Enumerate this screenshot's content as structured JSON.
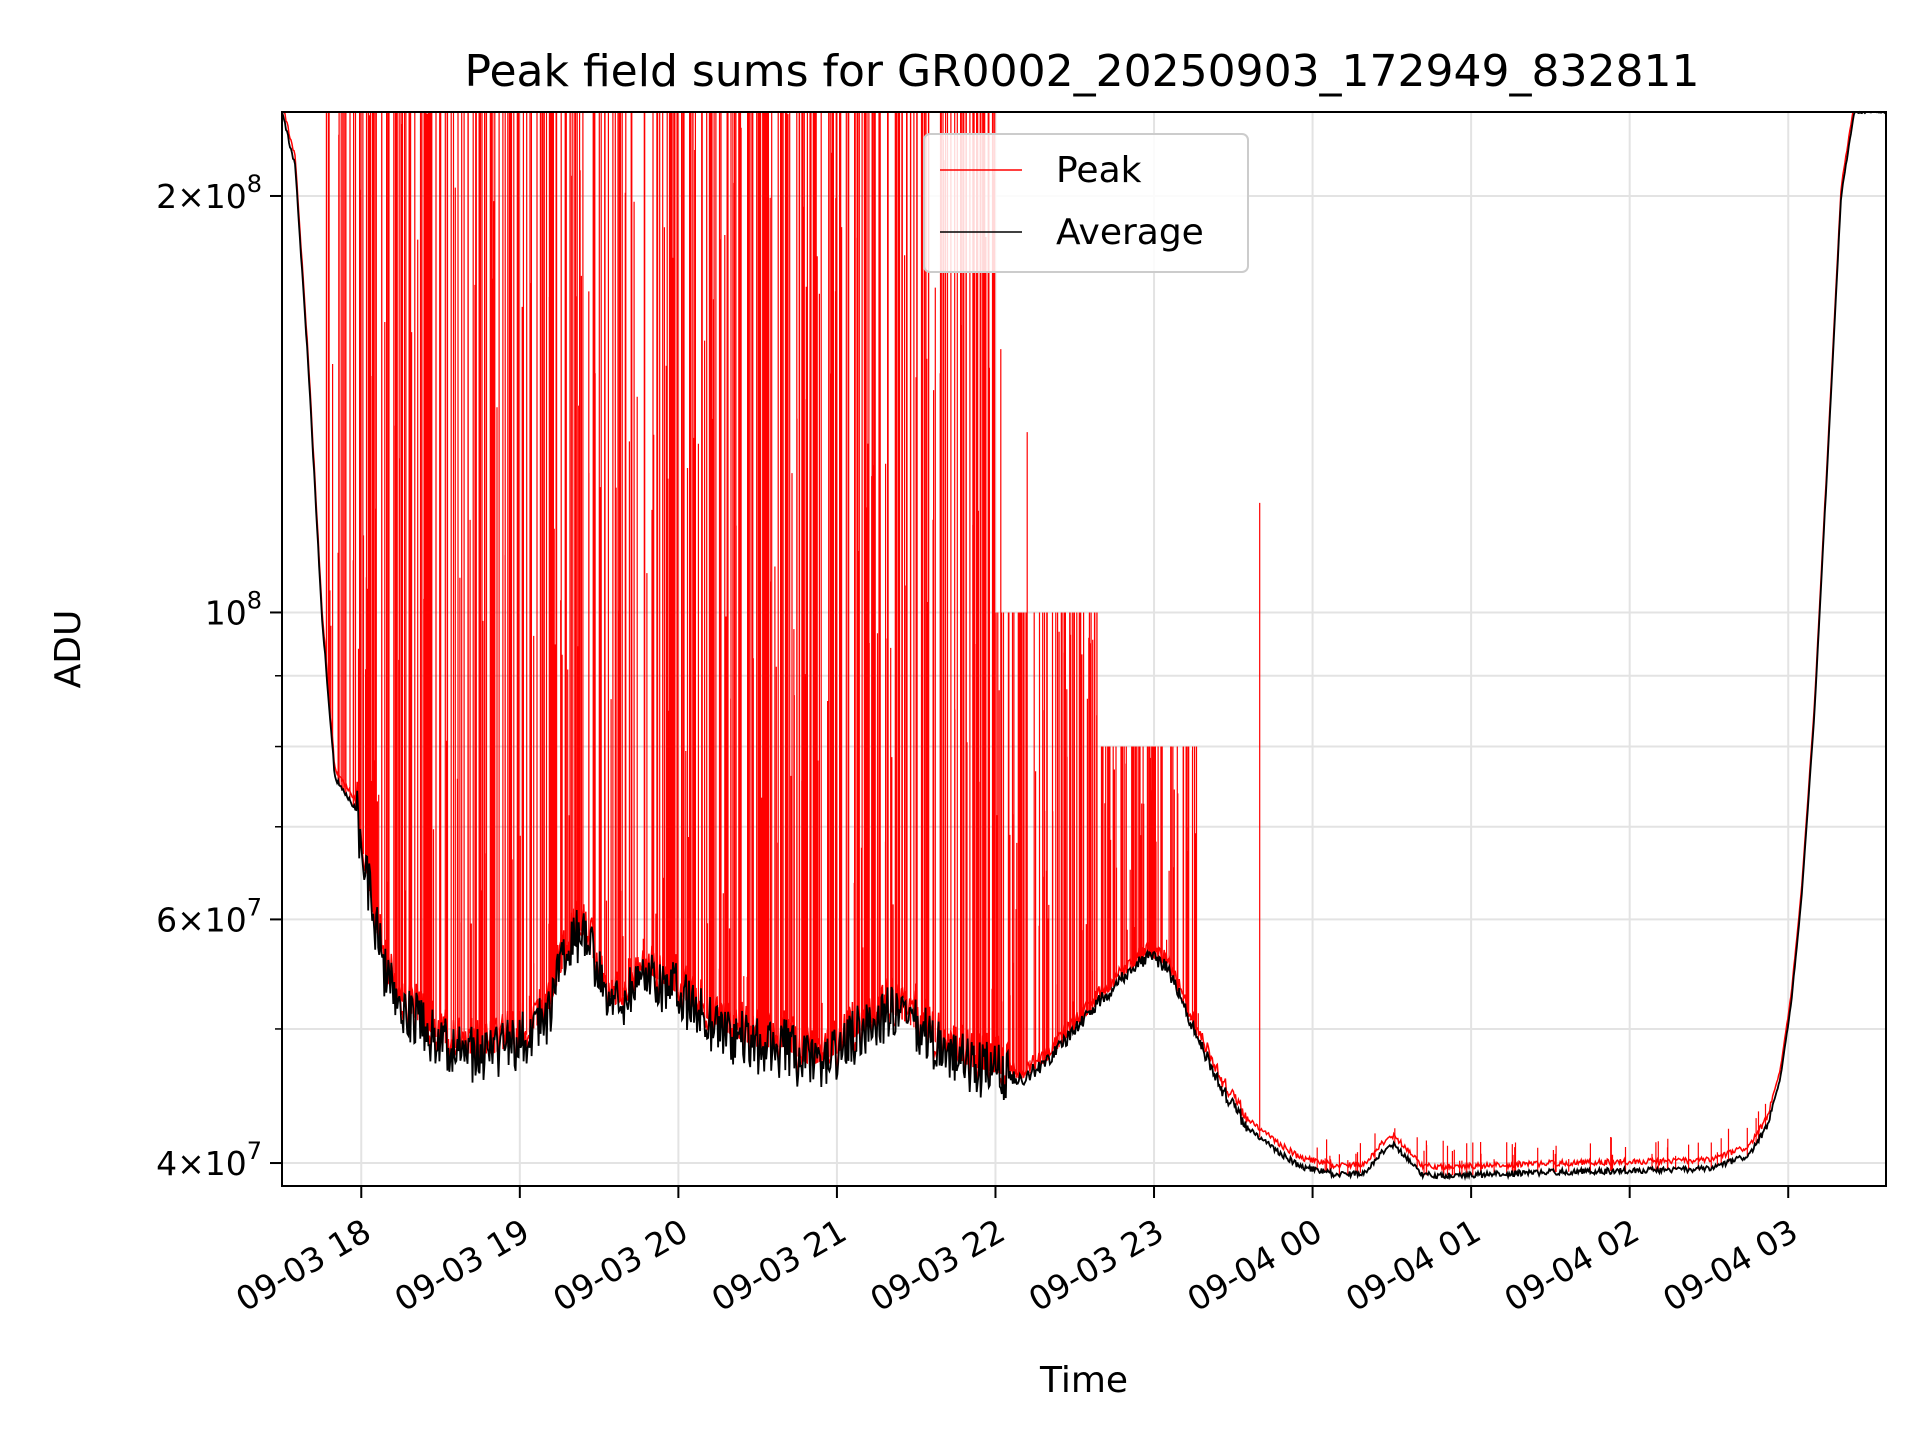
{
  "chart_data": {
    "type": "line",
    "title": "Peak field sums for GR0002_20250903_172949_832811",
    "xlabel": "Time",
    "ylabel": "ADU",
    "y_scale": "log",
    "ylim": [
      38500000,
      230000000
    ],
    "xlim": [
      "2025-09-03 17:30",
      "2025-09-04 03:37"
    ],
    "grid": true,
    "legend_position": "top-center",
    "x_ticks": [
      {
        "t": "2025-09-03 18:00",
        "label": "09-03 18"
      },
      {
        "t": "2025-09-03 19:00",
        "label": "09-03 19"
      },
      {
        "t": "2025-09-03 20:00",
        "label": "09-03 20"
      },
      {
        "t": "2025-09-03 21:00",
        "label": "09-03 21"
      },
      {
        "t": "2025-09-03 22:00",
        "label": "09-03 22"
      },
      {
        "t": "2025-09-03 23:00",
        "label": "09-03 23"
      },
      {
        "t": "2025-09-04 00:00",
        "label": "09-04 00"
      },
      {
        "t": "2025-09-04 01:00",
        "label": "09-04 01"
      },
      {
        "t": "2025-09-04 02:00",
        "label": "09-04 02"
      },
      {
        "t": "2025-09-04 03:00",
        "label": "09-04 03"
      }
    ],
    "y_ticks_major": [
      {
        "v": 40000000,
        "mantissa": "4",
        "base": "10",
        "exp": "7"
      },
      {
        "v": 60000000,
        "mantissa": "6",
        "base": "10",
        "exp": "7"
      },
      {
        "v": 100000000,
        "mantissa": "",
        "base": "10",
        "exp": "8"
      },
      {
        "v": 200000000,
        "mantissa": "2",
        "base": "10",
        "exp": "8"
      }
    ],
    "y_ticks_minor": [
      50000000,
      70000000,
      80000000,
      90000000
    ],
    "series": [
      {
        "name": "Average",
        "color": "#000000",
        "points": [
          [
            "2025-09-03 17:30",
            230000000
          ],
          [
            "2025-09-03 17:35",
            210000000
          ],
          [
            "2025-09-03 17:40",
            150000000
          ],
          [
            "2025-09-03 17:45",
            100000000
          ],
          [
            "2025-09-03 17:50",
            76000000
          ],
          [
            "2025-09-03 17:58",
            72000000
          ],
          [
            "2025-09-03 18:05",
            60000000
          ],
          [
            "2025-09-03 18:10",
            54000000
          ],
          [
            "2025-09-03 18:20",
            51000000
          ],
          [
            "2025-09-03 18:30",
            49000000
          ],
          [
            "2025-09-03 18:40",
            48000000
          ],
          [
            "2025-09-03 18:50",
            48000000
          ],
          [
            "2025-09-03 19:00",
            49000000
          ],
          [
            "2025-09-03 19:10",
            51000000
          ],
          [
            "2025-09-03 19:17",
            56000000
          ],
          [
            "2025-09-03 19:23",
            59000000
          ],
          [
            "2025-09-03 19:30",
            55000000
          ],
          [
            "2025-09-03 19:36",
            52000000
          ],
          [
            "2025-09-03 19:42",
            53500000
          ],
          [
            "2025-09-03 19:48",
            55000000
          ],
          [
            "2025-09-03 20:00",
            53000000
          ],
          [
            "2025-09-03 20:10",
            51000000
          ],
          [
            "2025-09-03 20:20",
            49500000
          ],
          [
            "2025-09-03 20:30",
            48500000
          ],
          [
            "2025-09-03 20:40",
            48500000
          ],
          [
            "2025-09-03 20:50",
            47000000
          ],
          [
            "2025-09-03 21:00",
            48000000
          ],
          [
            "2025-09-03 21:10",
            50000000
          ],
          [
            "2025-09-03 21:20",
            51500000
          ],
          [
            "2025-09-03 21:30",
            50000000
          ],
          [
            "2025-09-03 21:40",
            48500000
          ],
          [
            "2025-09-03 21:50",
            47000000
          ],
          [
            "2025-09-03 22:00",
            46500000
          ],
          [
            "2025-09-03 22:10",
            46000000
          ],
          [
            "2025-09-03 22:20",
            47500000
          ],
          [
            "2025-09-03 22:30",
            50000000
          ],
          [
            "2025-09-03 22:40",
            52500000
          ],
          [
            "2025-09-03 22:50",
            55000000
          ],
          [
            "2025-09-03 22:58",
            56500000
          ],
          [
            "2025-09-03 23:05",
            55500000
          ],
          [
            "2025-09-03 23:15",
            50000000
          ],
          [
            "2025-09-03 23:25",
            45500000
          ],
          [
            "2025-09-03 23:35",
            42500000
          ],
          [
            "2025-09-03 23:45",
            41000000
          ],
          [
            "2025-09-03 23:55",
            39800000
          ],
          [
            "2025-09-04 00:10",
            39200000
          ],
          [
            "2025-09-04 00:20",
            39400000
          ],
          [
            "2025-09-04 00:25",
            40500000
          ],
          [
            "2025-09-04 00:30",
            41300000
          ],
          [
            "2025-09-04 00:35",
            40500000
          ],
          [
            "2025-09-04 00:42",
            39200000
          ],
          [
            "2025-09-04 01:00",
            39200000
          ],
          [
            "2025-09-04 01:30",
            39400000
          ],
          [
            "2025-09-04 02:00",
            39500000
          ],
          [
            "2025-09-04 02:30",
            39600000
          ],
          [
            "2025-09-04 02:45",
            40500000
          ],
          [
            "2025-09-04 02:52",
            42500000
          ],
          [
            "2025-09-04 02:57",
            46000000
          ],
          [
            "2025-09-04 03:01",
            52000000
          ],
          [
            "2025-09-04 03:05",
            62000000
          ],
          [
            "2025-09-04 03:10",
            85000000
          ],
          [
            "2025-09-04 03:15",
            130000000
          ],
          [
            "2025-09-04 03:20",
            200000000
          ],
          [
            "2025-09-04 03:25",
            230000000
          ],
          [
            "2025-09-04 03:37",
            230000000
          ]
        ]
      },
      {
        "name": "Peak",
        "color": "#ff0000",
        "spike_bands": [
          [
            "2025-09-03 17:46",
            "2025-09-03 22:00",
            230000000
          ],
          [
            "2025-09-03 22:00",
            "2025-09-03 22:40",
            100000000
          ],
          [
            "2025-09-03 22:40",
            "2025-09-03 23:18",
            80000000
          ]
        ],
        "spikes": [
          [
            "2025-09-03 22:02",
            155000000
          ],
          [
            "2025-09-03 22:12",
            135000000
          ],
          [
            "2025-09-03 22:18",
            85000000
          ],
          [
            "2025-09-03 22:27",
            88000000
          ],
          [
            "2025-09-03 22:36",
            95000000
          ],
          [
            "2025-09-03 22:45",
            77000000
          ],
          [
            "2025-09-03 22:53",
            70000000
          ],
          [
            "2025-09-03 23:03",
            80000000
          ],
          [
            "2025-09-03 23:09",
            74000000
          ],
          [
            "2025-09-03 23:13",
            70000000
          ],
          [
            "2025-09-03 23:40",
            120000000
          ]
        ]
      }
    ]
  }
}
